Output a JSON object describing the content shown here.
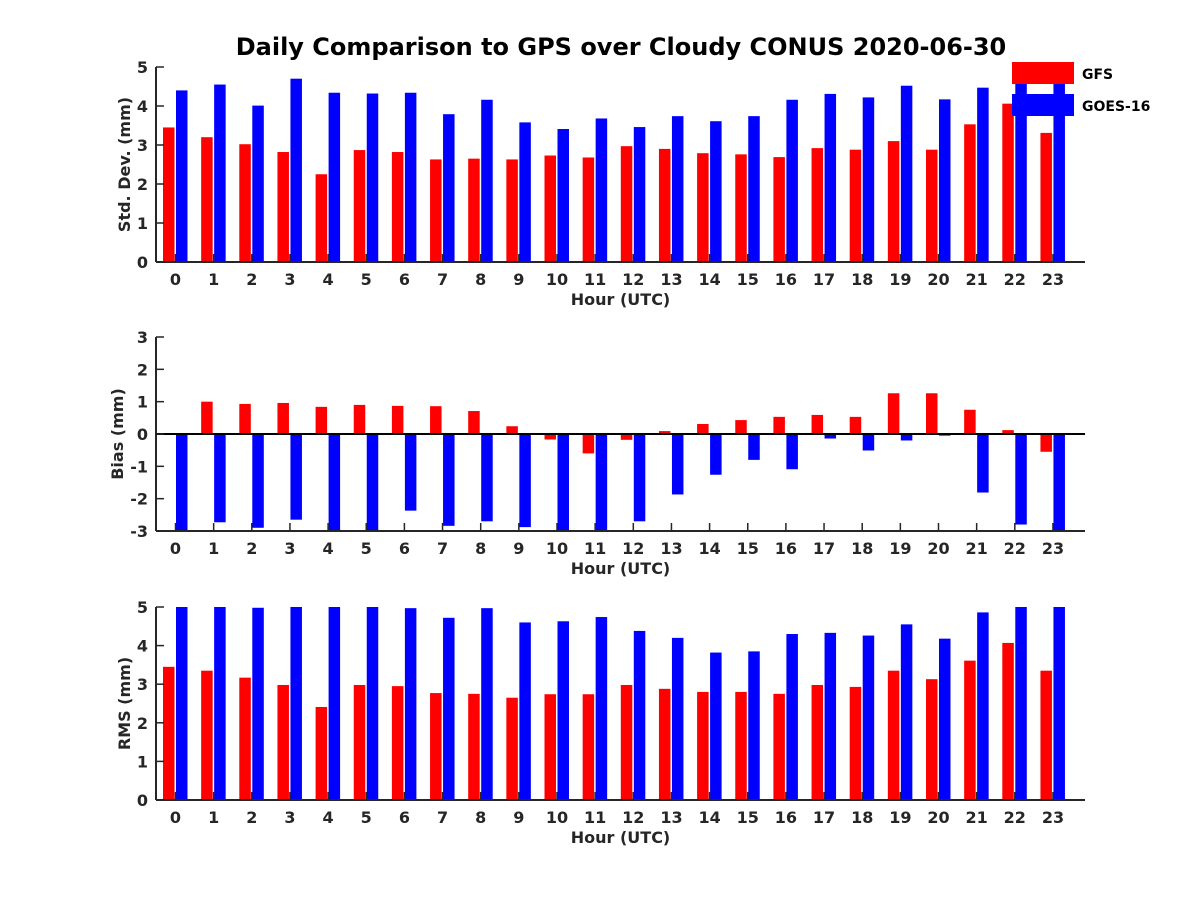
{
  "figure": {
    "title": "Daily Comparison to GPS over Cloudy CONUS 2020-06-30"
  },
  "legend": {
    "placement": "top-right",
    "entries": [
      {
        "name": "GFS",
        "color": "#ff0000"
      },
      {
        "name": "GOES-16",
        "color": "#0000ff"
      }
    ]
  },
  "chart_data": [
    {
      "type": "bar",
      "xlabel": "Hour (UTC)",
      "ylabel": "Std. Dev. (mm)",
      "ylim": [
        0,
        5
      ],
      "yticks": [
        "0",
        "1",
        "2",
        "3",
        "4",
        "5"
      ],
      "categories": [
        "0",
        "1",
        "2",
        "3",
        "4",
        "5",
        "6",
        "7",
        "8",
        "9",
        "10",
        "11",
        "12",
        "13",
        "14",
        "15",
        "16",
        "17",
        "18",
        "19",
        "20",
        "21",
        "22",
        "23"
      ],
      "series": [
        {
          "name": "GFS",
          "color": "#ff0000",
          "values": [
            3.45,
            3.2,
            3.02,
            2.82,
            2.25,
            2.87,
            2.82,
            2.63,
            2.65,
            2.63,
            2.73,
            2.68,
            2.97,
            2.9,
            2.79,
            2.76,
            2.69,
            2.92,
            2.88,
            3.1,
            2.88,
            3.53,
            4.06,
            3.31
          ]
        },
        {
          "name": "GOES-16",
          "color": "#0000ff",
          "values": [
            4.4,
            4.55,
            4.01,
            4.7,
            4.34,
            4.32,
            4.34,
            3.79,
            4.16,
            3.58,
            3.41,
            3.68,
            3.46,
            3.74,
            3.61,
            3.74,
            4.16,
            4.31,
            4.22,
            4.52,
            4.17,
            4.47,
            5.0,
            5.0
          ]
        }
      ],
      "grid": false
    },
    {
      "type": "bar",
      "xlabel": "Hour (UTC)",
      "ylabel": "Bias (mm)",
      "ylim": [
        -3,
        3
      ],
      "yticks": [
        "-3",
        "-2",
        "-1",
        "0",
        "1",
        "2",
        "3"
      ],
      "categories": [
        "0",
        "1",
        "2",
        "3",
        "4",
        "5",
        "6",
        "7",
        "8",
        "9",
        "10",
        "11",
        "12",
        "13",
        "14",
        "15",
        "16",
        "17",
        "18",
        "19",
        "20",
        "21",
        "22",
        "23"
      ],
      "series": [
        {
          "name": "GFS",
          "color": "#ff0000",
          "values": [
            0.0,
            1.0,
            0.93,
            0.96,
            0.84,
            0.9,
            0.87,
            0.86,
            0.71,
            0.24,
            -0.17,
            -0.6,
            -0.18,
            0.09,
            0.31,
            0.43,
            0.53,
            0.59,
            0.53,
            1.26,
            1.26,
            0.75,
            0.12,
            -0.55
          ]
        },
        {
          "name": "GOES-16",
          "color": "#0000ff",
          "values": [
            -3.0,
            -2.73,
            -2.9,
            -2.65,
            -3.0,
            -3.0,
            -2.37,
            -2.84,
            -2.7,
            -2.88,
            -3.0,
            -3.0,
            -2.7,
            -1.87,
            -1.26,
            -0.8,
            -1.09,
            -0.14,
            -0.51,
            -0.2,
            -0.05,
            -1.81,
            -2.8,
            -3.0
          ]
        }
      ],
      "grid": false
    },
    {
      "type": "bar",
      "xlabel": "Hour (UTC)",
      "ylabel": "RMS (mm)",
      "ylim": [
        0,
        5
      ],
      "yticks": [
        "0",
        "1",
        "2",
        "3",
        "4",
        "5"
      ],
      "categories": [
        "0",
        "1",
        "2",
        "3",
        "4",
        "5",
        "6",
        "7",
        "8",
        "9",
        "10",
        "11",
        "12",
        "13",
        "14",
        "15",
        "16",
        "17",
        "18",
        "19",
        "20",
        "21",
        "22",
        "23"
      ],
      "series": [
        {
          "name": "GFS",
          "color": "#ff0000",
          "values": [
            3.45,
            3.35,
            3.17,
            2.98,
            2.41,
            2.98,
            2.95,
            2.77,
            2.75,
            2.65,
            2.74,
            2.74,
            2.98,
            2.88,
            2.8,
            2.8,
            2.75,
            2.98,
            2.93,
            3.35,
            3.13,
            3.61,
            4.07,
            3.35
          ]
        },
        {
          "name": "GOES-16",
          "color": "#0000ff",
          "values": [
            5.0,
            5.0,
            4.98,
            5.0,
            5.0,
            5.0,
            4.97,
            4.72,
            4.97,
            4.6,
            4.63,
            4.74,
            4.38,
            4.2,
            3.82,
            3.85,
            4.3,
            4.33,
            4.26,
            4.55,
            4.18,
            4.86,
            5.0,
            5.0
          ]
        }
      ],
      "grid": false
    }
  ]
}
